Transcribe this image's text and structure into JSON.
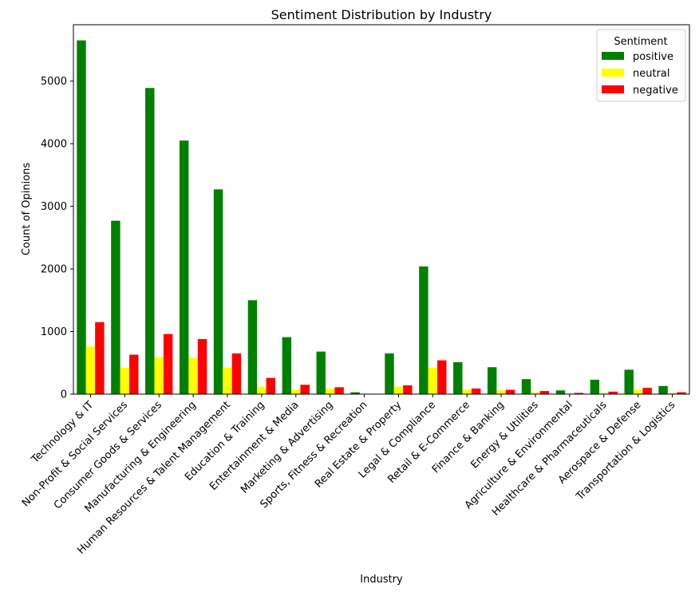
{
  "chart_data": {
    "type": "bar",
    "title": "Sentiment Distribution by Industry",
    "xlabel": "Industry",
    "ylabel": "Count of Opinions",
    "ylim": [
      0,
      5900
    ],
    "yticks": [
      0,
      1000,
      2000,
      3000,
      4000,
      5000
    ],
    "grid": false,
    "legend": {
      "title": "Sentiment",
      "placement": "top-right"
    },
    "categories": [
      "Technology & IT",
      "Non-Profit & Social Services",
      "Consumer Goods & Services",
      "Manufacturing & Engineering",
      "Human Resources & Talent Management",
      "Education & Training",
      "Entertainment & Media",
      "Marketing & Advertising",
      "Sports, Fitness & Recreation",
      "Real Estate & Property",
      "Legal & Compliance",
      "Retail & E-Commerce",
      "Finance & Banking",
      "Energy & Utilities",
      "Agriculture & Environmental",
      "Healthcare & Pharmaceuticals",
      "Aerospace & Defense",
      "Transportation & Logistics"
    ],
    "series": [
      {
        "name": "positive",
        "color": "#008000",
        "values": [
          5650,
          2770,
          4890,
          4050,
          3270,
          1500,
          910,
          680,
          30,
          650,
          2040,
          510,
          430,
          240,
          60,
          230,
          390,
          130
        ]
      },
      {
        "name": "neutral",
        "color": "#ffff00",
        "values": [
          760,
          420,
          590,
          580,
          420,
          120,
          70,
          90,
          5,
          120,
          420,
          70,
          60,
          30,
          10,
          20,
          70,
          20
        ]
      },
      {
        "name": "negative",
        "color": "#ff0000",
        "values": [
          1150,
          630,
          960,
          880,
          650,
          260,
          150,
          110,
          5,
          140,
          540,
          90,
          70,
          50,
          20,
          40,
          100,
          30
        ]
      }
    ]
  }
}
